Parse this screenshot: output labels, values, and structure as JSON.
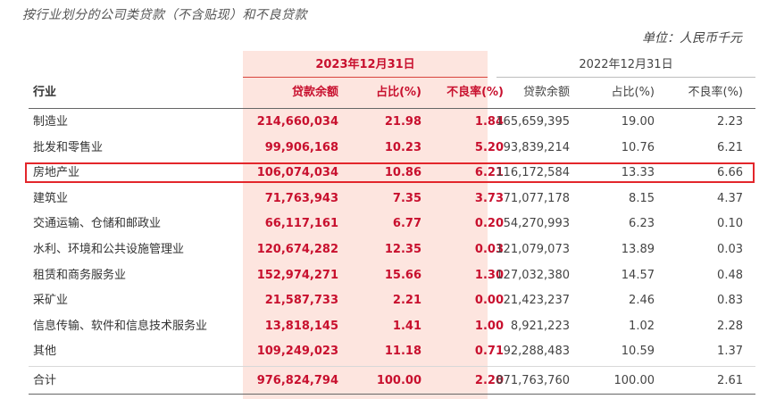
{
  "title": "按行业划分的公司类贷款（不含贴现）和不良贷款",
  "unit": "单位：人民币千元",
  "years": {
    "current": "2023年12月31日",
    "previous": "2022年12月31日"
  },
  "headers": {
    "industry": "行业",
    "balance": "贷款余额",
    "share": "占比(%)",
    "npl_ratio": "不良率(%)"
  },
  "rows": [
    {
      "industry": "制造业",
      "c_balance": "214,660,034",
      "c_share": "21.98",
      "c_npl": "1.84",
      "p_balance": "165,659,395",
      "p_share": "19.00",
      "p_npl": "2.23"
    },
    {
      "industry": "批发和零售业",
      "c_balance": "99,906,168",
      "c_share": "10.23",
      "c_npl": "5.20",
      "p_balance": "93,839,214",
      "p_share": "10.76",
      "p_npl": "6.21"
    },
    {
      "industry": "房地产业",
      "c_balance": "106,074,034",
      "c_share": "10.86",
      "c_npl": "6.21",
      "p_balance": "116,172,584",
      "p_share": "13.33",
      "p_npl": "6.66",
      "highlighted": true
    },
    {
      "industry": "建筑业",
      "c_balance": "71,763,943",
      "c_share": "7.35",
      "c_npl": "3.73",
      "p_balance": "71,077,178",
      "p_share": "8.15",
      "p_npl": "4.37"
    },
    {
      "industry": "交通运输、仓储和邮政业",
      "c_balance": "66,117,161",
      "c_share": "6.77",
      "c_npl": "0.20",
      "p_balance": "54,270,993",
      "p_share": "6.23",
      "p_npl": "0.10"
    },
    {
      "industry": "水利、环境和公共设施管理业",
      "c_balance": "120,674,282",
      "c_share": "12.35",
      "c_npl": "0.03",
      "p_balance": "121,079,073",
      "p_share": "13.89",
      "p_npl": "0.03"
    },
    {
      "industry": "租赁和商务服务业",
      "c_balance": "152,974,271",
      "c_share": "15.66",
      "c_npl": "1.30",
      "p_balance": "127,032,380",
      "p_share": "14.57",
      "p_npl": "0.48"
    },
    {
      "industry": "采矿业",
      "c_balance": "21,587,733",
      "c_share": "2.21",
      "c_npl": "0.00",
      "p_balance": "21,423,237",
      "p_share": "2.46",
      "p_npl": "0.83"
    },
    {
      "industry": "信息传输、软件和信息技术服务业",
      "c_balance": "13,818,145",
      "c_share": "1.41",
      "c_npl": "1.00",
      "p_balance": "8,921,223",
      "p_share": "1.02",
      "p_npl": "2.28"
    },
    {
      "industry": "其他",
      "c_balance": "109,249,023",
      "c_share": "11.18",
      "c_npl": "0.71",
      "p_balance": "92,288,483",
      "p_share": "10.59",
      "p_npl": "1.37"
    }
  ],
  "total": {
    "industry": "合计",
    "c_balance": "976,824,794",
    "c_share": "100.00",
    "c_npl": "2.20",
    "p_balance": "871,763,760",
    "p_share": "100.00",
    "p_npl": "2.61"
  },
  "colors": {
    "accent_red": "#c8102e",
    "band_pink": "#fde5df",
    "highlight_border": "#e3262b"
  }
}
